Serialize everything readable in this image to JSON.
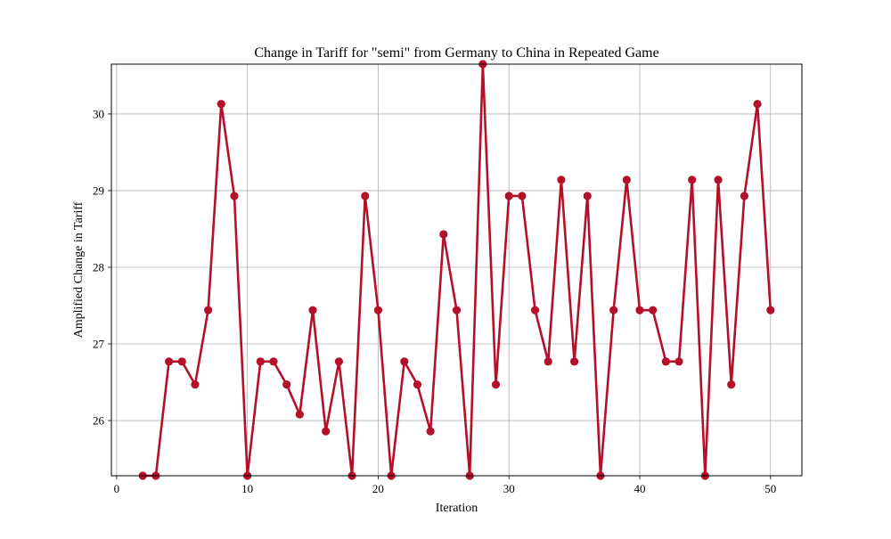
{
  "chart_data": {
    "type": "line",
    "title": "Change in Tariff for \"semi\" from Germany to China in Repeated Game",
    "xlabel": "Iteration",
    "ylabel": "Amplified Change in Tariff",
    "xlim": [
      -0.4,
      52.4
    ],
    "ylim": [
      25.28,
      30.65
    ],
    "xticks": [
      0,
      10,
      20,
      30,
      40,
      50
    ],
    "yticks": [
      26,
      27,
      28,
      29,
      30
    ],
    "grid": true,
    "line_color": "#b5102a",
    "grid_color": "#b0b0b0",
    "series": [
      {
        "x": [
          2,
          3,
          4,
          5,
          6,
          7,
          8,
          9,
          10,
          11,
          12,
          13,
          14,
          15,
          16,
          17,
          18,
          19,
          20,
          21,
          22,
          23,
          24,
          25,
          26,
          27,
          28,
          29,
          30,
          31,
          32,
          33,
          34,
          35,
          36,
          37,
          38,
          39,
          40,
          41,
          42,
          43,
          44,
          45,
          46,
          47,
          48,
          49,
          50
        ],
        "values": [
          25.28,
          25.28,
          26.77,
          26.77,
          26.47,
          27.44,
          30.13,
          28.93,
          25.28,
          26.77,
          26.77,
          26.47,
          26.08,
          27.44,
          25.86,
          26.77,
          25.28,
          28.93,
          27.44,
          25.28,
          26.77,
          26.47,
          25.86,
          28.43,
          27.44,
          25.28,
          30.65,
          26.47,
          28.93,
          28.93,
          27.44,
          26.77,
          29.14,
          26.77,
          28.93,
          25.28,
          27.44,
          29.14,
          27.44,
          27.44,
          26.77,
          26.77,
          29.14,
          25.28,
          29.14,
          26.47,
          28.93,
          30.13,
          27.44
        ]
      }
    ]
  }
}
